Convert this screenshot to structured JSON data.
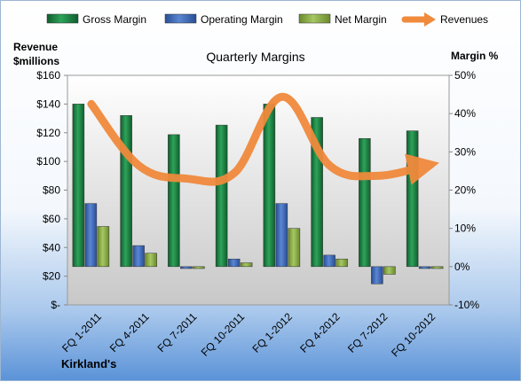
{
  "chart_data": {
    "type": "bar",
    "title": "Quarterly Margins",
    "categories": [
      "FQ 1-2011",
      "FQ 4-2011",
      "FQ 7-2011",
      "FQ 10-2011",
      "FQ 1-2012",
      "FQ 4-2012",
      "FQ 7-2012",
      "FQ 10-2012"
    ],
    "series": [
      {
        "name": "Gross Margin",
        "axis": "right",
        "kind": "bar",
        "color": "#1e8a45",
        "values": [
          42.5,
          39.5,
          34.5,
          37.0,
          42.5,
          39.0,
          33.5,
          35.5
        ]
      },
      {
        "name": "Operating Margin",
        "axis": "right",
        "kind": "bar",
        "color": "#3f6ebf",
        "values": [
          16.5,
          5.5,
          -0.5,
          2.0,
          16.5,
          3.0,
          -4.5,
          -0.5
        ]
      },
      {
        "name": "Net Margin",
        "axis": "right",
        "kind": "bar",
        "color": "#8fb04a",
        "values": [
          10.5,
          3.5,
          -0.5,
          1.0,
          10.0,
          2.0,
          -2.0,
          -0.5
        ]
      },
      {
        "name": "Revenues",
        "axis": "left",
        "kind": "line",
        "color": "#f08a3c",
        "values": [
          140,
          97,
          88,
          92,
          145,
          97,
          90,
          97
        ]
      }
    ],
    "left_axis": {
      "label_lines": [
        "Revenue",
        "$millions"
      ],
      "ylim": [
        0,
        160
      ],
      "ticks": [
        0,
        20,
        40,
        60,
        80,
        100,
        120,
        140,
        160
      ],
      "tick_labels": [
        "$-",
        "$20",
        "$40",
        "$60",
        "$80",
        "$100",
        "$120",
        "$140",
        "$160"
      ]
    },
    "right_axis": {
      "label": "Margin %",
      "ylim": [
        -10,
        50
      ],
      "ticks": [
        -10,
        0,
        10,
        20,
        30,
        40,
        50
      ],
      "tick_labels": [
        "-10%",
        "0%",
        "10%",
        "20%",
        "30%",
        "40%",
        "50%"
      ]
    },
    "legend_position": "top",
    "grid": false,
    "footer_label": "Kirkland's"
  }
}
